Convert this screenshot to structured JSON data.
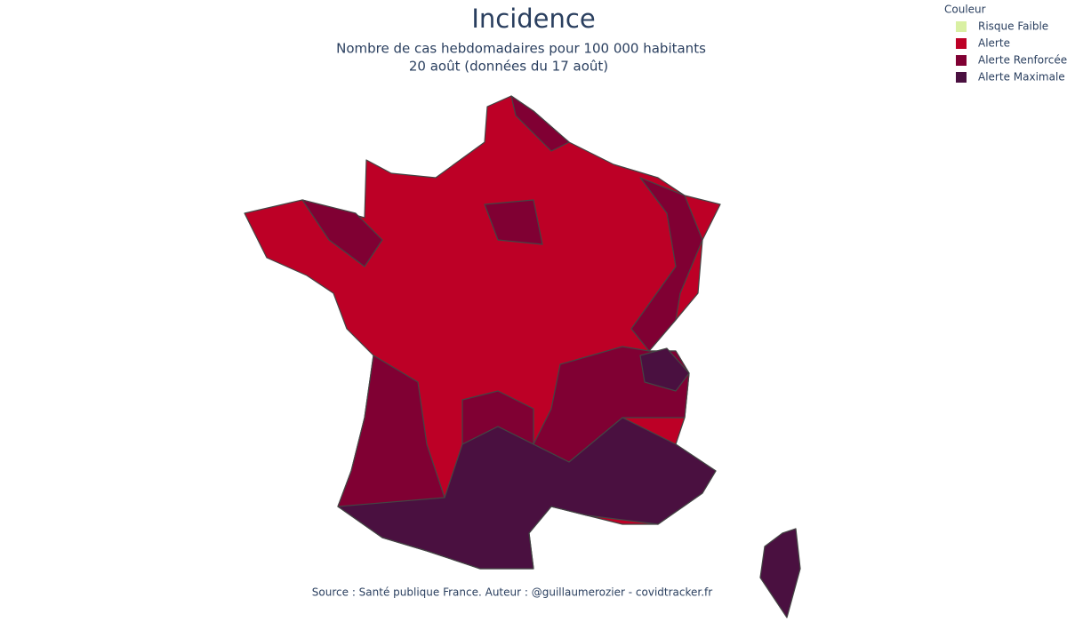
{
  "title": "Incidence",
  "subtitle": [
    "Nombre de cas hebdomadaires pour 100 000 habitants",
    "20 août (données du 17 août)"
  ],
  "legend": {
    "title": "Couleur",
    "items": [
      {
        "label": "Risque Faible",
        "color": "#d9f0a3"
      },
      {
        "label": "Alerte",
        "color": "#bd0026"
      },
      {
        "label": "Alerte Renforcée",
        "color": "#800033"
      },
      {
        "label": "Alerte Maximale",
        "color": "#4a1040"
      }
    ]
  },
  "source": "Source : Santé publique France. Auteur : @guillaumerozier - covidtracker.fr"
}
